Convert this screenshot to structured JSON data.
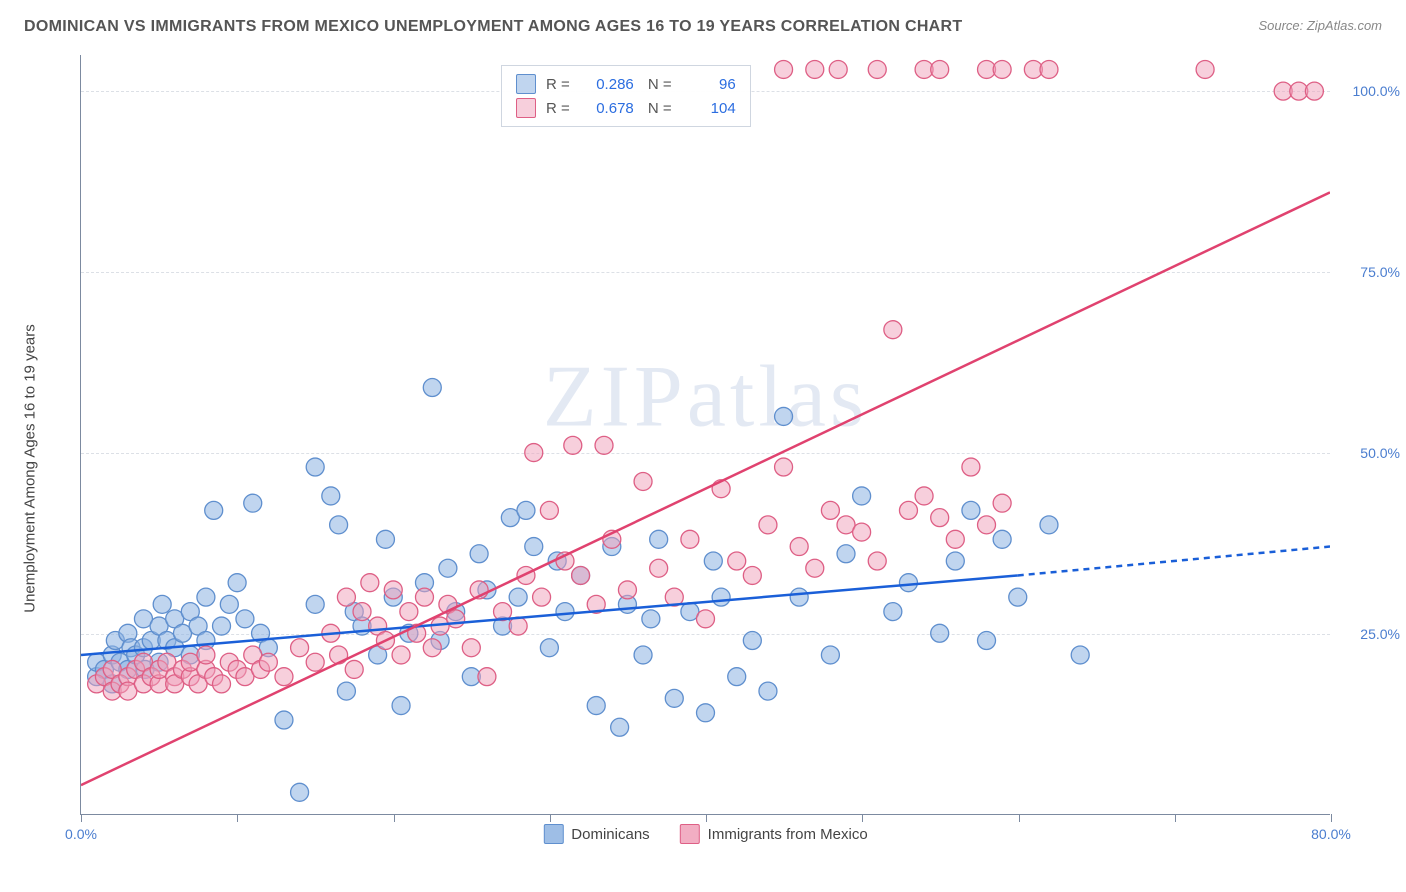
{
  "title": "DOMINICAN VS IMMIGRANTS FROM MEXICO UNEMPLOYMENT AMONG AGES 16 TO 19 YEARS CORRELATION CHART",
  "source": "Source: ZipAtlas.com",
  "y_axis_label": "Unemployment Among Ages 16 to 19 years",
  "watermark": "ZIPatlas",
  "chart": {
    "type": "scatter",
    "xlim": [
      0,
      80
    ],
    "ylim": [
      0,
      105
    ],
    "x_ticks": [
      0,
      10,
      20,
      30,
      40,
      50,
      60,
      70,
      80
    ],
    "x_tick_labels": {
      "0": "0.0%",
      "80": "80.0%"
    },
    "y_ticks": [
      25,
      50,
      75,
      100
    ],
    "y_tick_labels": [
      "25.0%",
      "50.0%",
      "75.0%",
      "100.0%"
    ],
    "background_color": "#ffffff",
    "grid_color": "#dce0e6",
    "axis_color": "#7c8aa0",
    "tick_label_color": "#4a7dcf",
    "series": [
      {
        "name": "Dominicans",
        "color_fill": "rgba(141,179,226,0.55)",
        "color_stroke": "#5f8fce",
        "marker_radius": 9,
        "R": "0.286",
        "N": "96",
        "regression": {
          "x1": 0,
          "y1": 22,
          "x2": 60,
          "y2": 33,
          "x3": 80,
          "y3": 37,
          "color": "#1a5fd8",
          "width": 2.5,
          "dashed_after": 60
        },
        "points": [
          [
            1,
            19
          ],
          [
            1,
            21
          ],
          [
            1.5,
            20
          ],
          [
            2,
            18
          ],
          [
            2,
            22
          ],
          [
            2.2,
            24
          ],
          [
            2.5,
            21
          ],
          [
            3,
            20
          ],
          [
            3,
            25
          ],
          [
            3.2,
            23
          ],
          [
            3.5,
            22
          ],
          [
            4,
            23
          ],
          [
            4,
            27
          ],
          [
            4.1,
            20
          ],
          [
            4.5,
            24
          ],
          [
            5,
            21
          ],
          [
            5,
            26
          ],
          [
            5.2,
            29
          ],
          [
            5.5,
            24
          ],
          [
            6,
            23
          ],
          [
            6,
            27
          ],
          [
            6.5,
            25
          ],
          [
            7,
            22
          ],
          [
            7,
            28
          ],
          [
            7.5,
            26
          ],
          [
            8,
            24
          ],
          [
            8,
            30
          ],
          [
            8.5,
            42
          ],
          [
            9,
            26
          ],
          [
            9.5,
            29
          ],
          [
            10,
            32
          ],
          [
            10.5,
            27
          ],
          [
            11,
            43
          ],
          [
            11.5,
            25
          ],
          [
            12,
            23
          ],
          [
            13,
            13
          ],
          [
            14,
            3
          ],
          [
            15,
            29
          ],
          [
            15,
            48
          ],
          [
            16,
            44
          ],
          [
            16.5,
            40
          ],
          [
            17,
            17
          ],
          [
            17.5,
            28
          ],
          [
            18,
            26
          ],
          [
            19,
            22
          ],
          [
            19.5,
            38
          ],
          [
            20,
            30
          ],
          [
            20.5,
            15
          ],
          [
            21,
            25
          ],
          [
            22,
            32
          ],
          [
            22.5,
            59
          ],
          [
            23,
            24
          ],
          [
            23.5,
            34
          ],
          [
            24,
            28
          ],
          [
            25,
            19
          ],
          [
            25.5,
            36
          ],
          [
            26,
            31
          ],
          [
            27,
            26
          ],
          [
            27.5,
            41
          ],
          [
            28,
            30
          ],
          [
            28.5,
            42
          ],
          [
            29,
            37
          ],
          [
            30,
            23
          ],
          [
            30.5,
            35
          ],
          [
            31,
            28
          ],
          [
            32,
            33
          ],
          [
            33,
            15
          ],
          [
            34,
            37
          ],
          [
            34.5,
            12
          ],
          [
            35,
            29
          ],
          [
            36,
            22
          ],
          [
            36.5,
            27
          ],
          [
            37,
            38
          ],
          [
            38,
            16
          ],
          [
            39,
            28
          ],
          [
            40,
            14
          ],
          [
            40.5,
            35
          ],
          [
            41,
            30
          ],
          [
            42,
            19
          ],
          [
            43,
            24
          ],
          [
            44,
            17
          ],
          [
            45,
            55
          ],
          [
            46,
            30
          ],
          [
            48,
            22
          ],
          [
            49,
            36
          ],
          [
            50,
            44
          ],
          [
            52,
            28
          ],
          [
            53,
            32
          ],
          [
            55,
            25
          ],
          [
            56,
            35
          ],
          [
            57,
            42
          ],
          [
            58,
            24
          ],
          [
            59,
            38
          ],
          [
            60,
            30
          ],
          [
            62,
            40
          ],
          [
            64,
            22
          ]
        ]
      },
      {
        "name": "Immigrants from Mexico",
        "color_fill": "rgba(240,160,185,0.5)",
        "color_stroke": "#de5f85",
        "marker_radius": 9,
        "R": "0.678",
        "N": "104",
        "regression": {
          "x1": 0,
          "y1": 4,
          "x2": 80,
          "y2": 86,
          "color": "#e0426f",
          "width": 2.5
        },
        "points": [
          [
            1,
            18
          ],
          [
            1.5,
            19
          ],
          [
            2,
            17
          ],
          [
            2,
            20
          ],
          [
            2.5,
            18
          ],
          [
            3,
            19
          ],
          [
            3,
            17
          ],
          [
            3.5,
            20
          ],
          [
            4,
            18
          ],
          [
            4,
            21
          ],
          [
            4.5,
            19
          ],
          [
            5,
            18
          ],
          [
            5,
            20
          ],
          [
            5.5,
            21
          ],
          [
            6,
            19
          ],
          [
            6,
            18
          ],
          [
            6.5,
            20
          ],
          [
            7,
            19
          ],
          [
            7,
            21
          ],
          [
            7.5,
            18
          ],
          [
            8,
            20
          ],
          [
            8,
            22
          ],
          [
            8.5,
            19
          ],
          [
            9,
            18
          ],
          [
            9.5,
            21
          ],
          [
            10,
            20
          ],
          [
            10.5,
            19
          ],
          [
            11,
            22
          ],
          [
            11.5,
            20
          ],
          [
            12,
            21
          ],
          [
            13,
            19
          ],
          [
            14,
            23
          ],
          [
            15,
            21
          ],
          [
            16,
            25
          ],
          [
            16.5,
            22
          ],
          [
            17,
            30
          ],
          [
            17.5,
            20
          ],
          [
            18,
            28
          ],
          [
            18.5,
            32
          ],
          [
            19,
            26
          ],
          [
            19.5,
            24
          ],
          [
            20,
            31
          ],
          [
            20.5,
            22
          ],
          [
            21,
            28
          ],
          [
            21.5,
            25
          ],
          [
            22,
            30
          ],
          [
            22.5,
            23
          ],
          [
            23,
            26
          ],
          [
            23.5,
            29
          ],
          [
            24,
            27
          ],
          [
            25,
            23
          ],
          [
            25.5,
            31
          ],
          [
            26,
            19
          ],
          [
            27,
            28
          ],
          [
            28,
            26
          ],
          [
            28.5,
            33
          ],
          [
            29,
            50
          ],
          [
            29.5,
            30
          ],
          [
            30,
            42
          ],
          [
            31,
            35
          ],
          [
            31.5,
            51
          ],
          [
            32,
            33
          ],
          [
            33,
            29
          ],
          [
            33.5,
            51
          ],
          [
            34,
            38
          ],
          [
            35,
            31
          ],
          [
            36,
            46
          ],
          [
            37,
            34
          ],
          [
            38,
            30
          ],
          [
            39,
            38
          ],
          [
            40,
            27
          ],
          [
            41,
            45
          ],
          [
            42,
            35
          ],
          [
            43,
            33
          ],
          [
            44,
            40
          ],
          [
            45,
            48
          ],
          [
            46,
            37
          ],
          [
            47,
            34
          ],
          [
            48,
            42
          ],
          [
            49,
            40
          ],
          [
            50,
            39
          ],
          [
            51,
            35
          ],
          [
            52,
            67
          ],
          [
            53,
            42
          ],
          [
            54,
            44
          ],
          [
            55,
            41
          ],
          [
            56,
            38
          ],
          [
            57,
            48
          ],
          [
            58,
            40
          ],
          [
            59,
            43
          ],
          [
            45,
            103
          ],
          [
            47,
            103
          ],
          [
            48.5,
            103
          ],
          [
            51,
            103
          ],
          [
            54,
            103
          ],
          [
            55,
            103
          ],
          [
            58,
            103
          ],
          [
            59,
            103
          ],
          [
            61,
            103
          ],
          [
            62,
            103
          ],
          [
            72,
            103
          ],
          [
            77,
            100
          ],
          [
            78,
            100
          ],
          [
            79,
            100
          ]
        ]
      }
    ]
  },
  "legend_bottom": [
    {
      "label": "Dominicans",
      "fill": "rgba(141,179,226,0.85)",
      "stroke": "#5f8fce"
    },
    {
      "label": "Immigrants from Mexico",
      "fill": "rgba(240,160,185,0.85)",
      "stroke": "#de5f85"
    }
  ]
}
